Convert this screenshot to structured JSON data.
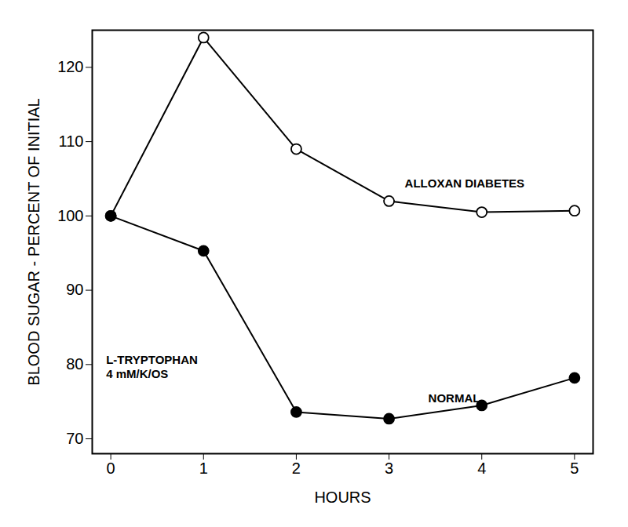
{
  "chart_data": {
    "type": "line",
    "x_label": "HOURS",
    "y_label": "BLOOD SUGAR - PERCENT OF INITIAL",
    "x": [
      0,
      1,
      2,
      3,
      4,
      5
    ],
    "series": [
      {
        "name": "ALLOXAN DIABETES",
        "color": "#000000",
        "marker": "open circle",
        "line_style": "solid",
        "values": [
          100,
          124,
          109,
          102,
          100.5,
          100.7
        ]
      },
      {
        "name": "NORMAL",
        "color": "#000000",
        "marker": "filled circle",
        "line_style": "solid",
        "values": [
          100,
          95.3,
          73.6,
          72.7,
          74.5,
          78.2
        ]
      }
    ],
    "annotations": [
      "L-TRYPTOPHAN",
      "4 mM/K/OS"
    ],
    "xlim": [
      -0.2,
      5.2
    ],
    "ylim": [
      68,
      125
    ],
    "xticks": [
      0,
      1,
      2,
      3,
      4,
      5
    ],
    "yticks": [
      70,
      80,
      90,
      100,
      110,
      120
    ],
    "grid": false
  }
}
